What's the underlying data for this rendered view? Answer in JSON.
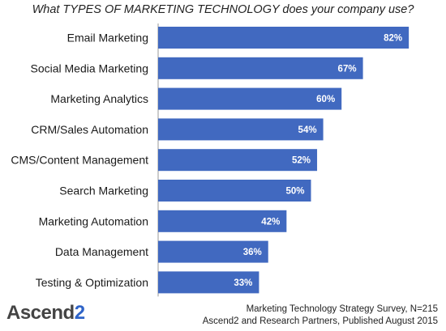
{
  "chart_data": {
    "type": "bar",
    "orientation": "horizontal",
    "title": "What TYPES OF MARKETING TECHNOLOGY does your company use?",
    "categories": [
      "Email Marketing",
      "Social Media Marketing",
      "Marketing Analytics",
      "CRM/Sales Automation",
      "CMS/Content Management",
      "Search Marketing",
      "Marketing Automation",
      "Data Management",
      "Testing & Optimization"
    ],
    "values": [
      82,
      67,
      60,
      54,
      52,
      50,
      42,
      36,
      33
    ],
    "value_labels": [
      "82%",
      "67%",
      "60%",
      "54%",
      "52%",
      "50%",
      "42%",
      "36%",
      "33%"
    ],
    "xlim": [
      0,
      100
    ],
    "grid": false,
    "bar_color": "#4169c0"
  },
  "logo": {
    "text_main": "Ascend",
    "text_digit": "2"
  },
  "source": {
    "line1": "Marketing Technology Strategy Survey, N=215",
    "line2": "Ascend2 and Research Partners, Published August 2015"
  }
}
